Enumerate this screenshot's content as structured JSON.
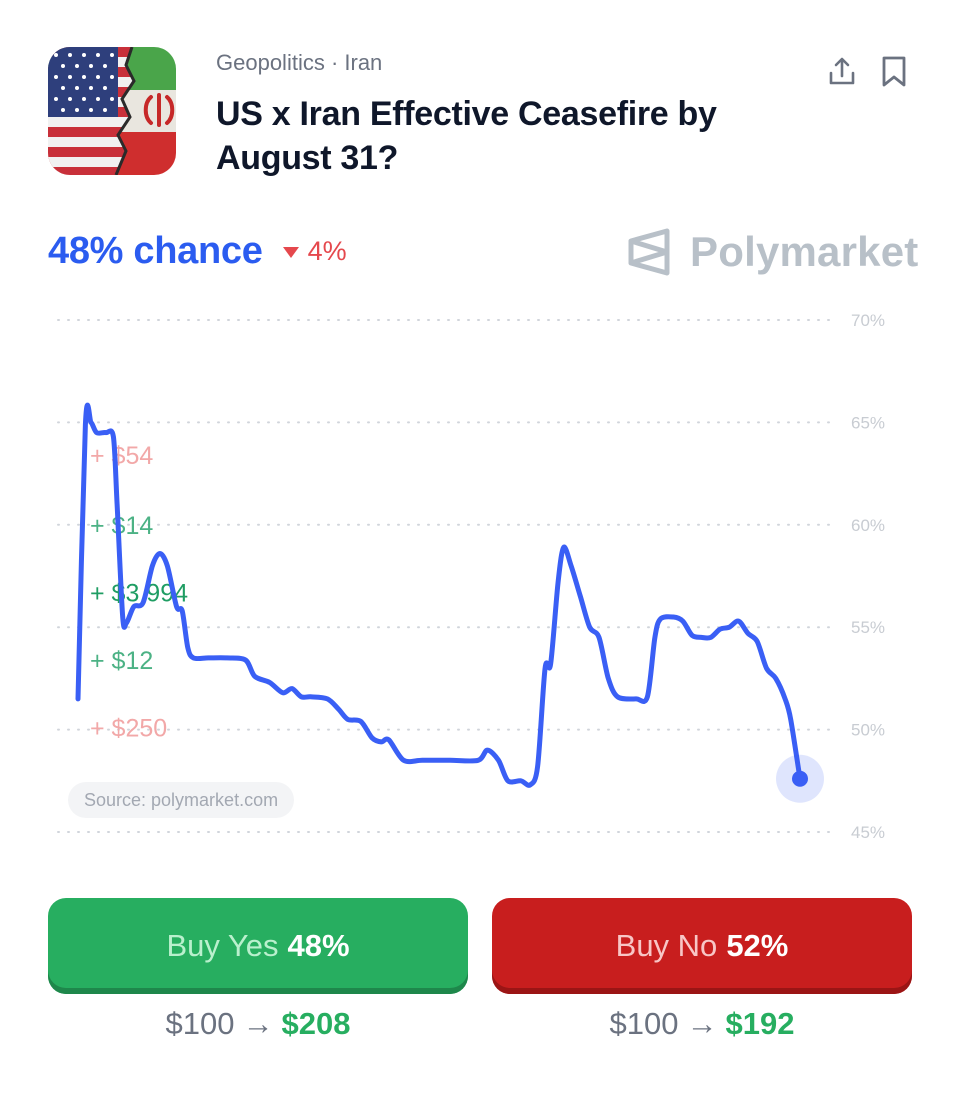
{
  "header": {
    "category": "Geopolitics · Iran",
    "title": "US x Iran Effective Ceasefire by August 31?"
  },
  "summary": {
    "chance_text": "48% chance",
    "change_text": "4%",
    "change_direction": "down",
    "brand": "Polymarket",
    "source": "Source: polymarket.com"
  },
  "colors": {
    "line": "#3a5ff5",
    "grid": "#d1d5db",
    "yes": "#27ae60",
    "no": "#c81e1e",
    "trade_buy": "#1f9d63",
    "trade_sell": "#f2a8a8",
    "axis_label": "#c8ccd2"
  },
  "chart_data": {
    "type": "line",
    "title": "",
    "xlabel": "",
    "ylabel": "",
    "ylim": [
      45,
      70
    ],
    "yticks": [
      70,
      65,
      60,
      55,
      50,
      45
    ],
    "ytick_labels": [
      "70%",
      "65%",
      "60%",
      "55%",
      "50%",
      "45%"
    ],
    "grid": true,
    "series": [
      {
        "values": [
          [
            0,
            51.5
          ],
          [
            0.8,
            64.9
          ],
          [
            1.4,
            65.0
          ],
          [
            2.0,
            64.5
          ],
          [
            3.0,
            64.5
          ],
          [
            3.8,
            64.3
          ],
          [
            4.2,
            61.0
          ],
          [
            4.8,
            55.5
          ],
          [
            5.2,
            55.2
          ],
          [
            6.0,
            56.0
          ],
          [
            7.0,
            56.2
          ],
          [
            8.0,
            58.0
          ],
          [
            8.8,
            58.6
          ],
          [
            9.6,
            58.0
          ],
          [
            10.6,
            56.0
          ],
          [
            11.2,
            55.8
          ],
          [
            11.8,
            54.0
          ],
          [
            12.4,
            53.5
          ],
          [
            14.0,
            53.5
          ],
          [
            16.0,
            53.5
          ],
          [
            18.0,
            53.4
          ],
          [
            19.0,
            52.6
          ],
          [
            20.6,
            52.3
          ],
          [
            22.0,
            51.8
          ],
          [
            23.0,
            52.0
          ],
          [
            24.0,
            51.6
          ],
          [
            25.0,
            51.6
          ],
          [
            26.8,
            51.5
          ],
          [
            28.0,
            51.0
          ],
          [
            29.0,
            50.5
          ],
          [
            30.4,
            50.4
          ],
          [
            31.6,
            49.6
          ],
          [
            32.6,
            49.4
          ],
          [
            33.4,
            49.5
          ],
          [
            35.0,
            48.5
          ],
          [
            37.0,
            48.5
          ],
          [
            40.0,
            48.5
          ],
          [
            43.0,
            48.5
          ],
          [
            44.0,
            49.0
          ],
          [
            45.2,
            48.5
          ],
          [
            46.2,
            47.5
          ],
          [
            47.6,
            47.5
          ],
          [
            48.6,
            47.3
          ],
          [
            49.4,
            48.2
          ],
          [
            50.2,
            53.0
          ],
          [
            50.8,
            53.2
          ],
          [
            51.6,
            57.2
          ],
          [
            52.2,
            58.9
          ],
          [
            53.0,
            58.0
          ],
          [
            54.0,
            56.5
          ],
          [
            55.0,
            55.0
          ],
          [
            56.0,
            54.5
          ],
          [
            57.0,
            52.5
          ],
          [
            58.0,
            51.6
          ],
          [
            60.0,
            51.5
          ],
          [
            61.2,
            51.6
          ],
          [
            62.0,
            54.5
          ],
          [
            62.6,
            55.4
          ],
          [
            64.0,
            55.5
          ],
          [
            65.0,
            55.3
          ],
          [
            66.0,
            54.6
          ],
          [
            67.0,
            54.5
          ],
          [
            68.0,
            54.5
          ],
          [
            69.0,
            54.9
          ],
          [
            70.0,
            55.0
          ],
          [
            71.0,
            55.3
          ],
          [
            72.0,
            54.7
          ],
          [
            73.0,
            54.3
          ],
          [
            74.0,
            53.0
          ],
          [
            75.0,
            52.5
          ],
          [
            76.0,
            51.5
          ],
          [
            76.6,
            50.5
          ],
          [
            77.6,
            47.6
          ]
        ]
      }
    ],
    "trades": [
      {
        "text": "+ $54",
        "y": 63.4,
        "side": "sell"
      },
      {
        "text": "+ $14",
        "y": 60.0,
        "side": "buy"
      },
      {
        "text": "+ $3,994",
        "y": 56.7,
        "side": "buy_large"
      },
      {
        "text": "+ $12",
        "y": 53.4,
        "side": "buy"
      },
      {
        "text": "+ $250",
        "y": 50.1,
        "side": "sell"
      }
    ]
  },
  "buy_yes": {
    "label": "Buy Yes",
    "pct": "48%",
    "stake": "$100",
    "arrow": "→",
    "payout": "$208"
  },
  "buy_no": {
    "label": "Buy No",
    "pct": "52%",
    "stake": "$100",
    "arrow": "→",
    "payout": "$192"
  }
}
